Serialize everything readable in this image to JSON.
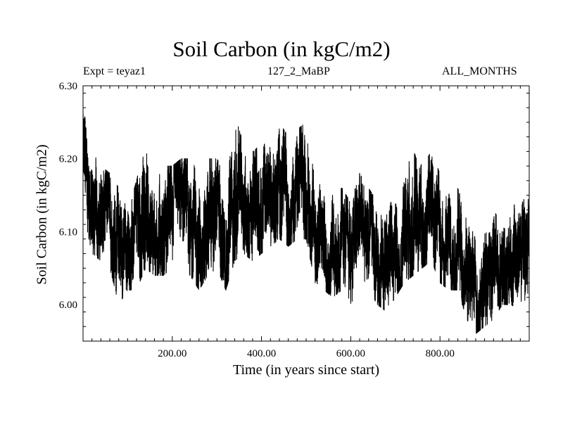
{
  "header": {
    "title": "Soil Carbon (in kgC/m2)",
    "expt": "Expt = teyaz1",
    "subtitle": "127_2_MaBP",
    "months": "ALL_MONTHS"
  },
  "colors": {
    "line": "#000000",
    "axis": "#000000",
    "background": "#ffffff"
  },
  "chart_data": {
    "type": "line",
    "title": "Soil Carbon (in kgC/m2)",
    "xlabel": "Time (in years since start)",
    "ylabel": "Soil Carbon (in kgC/m2)",
    "xlim": [
      0,
      1000
    ],
    "ylim": [
      5.95,
      6.3
    ],
    "x_ticks": [
      200,
      400,
      600,
      800
    ],
    "x_tick_labels": [
      "200.00",
      "400.00",
      "600.00",
      "800.00"
    ],
    "y_ticks": [
      6.0,
      6.1,
      6.2,
      6.3
    ],
    "y_tick_labels": [
      "6.00",
      "6.10",
      "6.20",
      "6.30"
    ],
    "grid": false,
    "series": [
      {
        "name": "Soil Carbon",
        "note": "dense monthly noise around a slowly varying mean",
        "x": [
          0,
          20,
          40,
          60,
          80,
          100,
          120,
          140,
          160,
          180,
          200,
          220,
          240,
          260,
          280,
          300,
          320,
          340,
          360,
          380,
          400,
          420,
          440,
          460,
          480,
          500,
          520,
          540,
          560,
          580,
          600,
          620,
          640,
          660,
          680,
          700,
          720,
          740,
          760,
          780,
          800,
          820,
          840,
          860,
          880,
          900,
          920,
          940,
          960,
          980,
          1000
        ],
        "mean": [
          6.2,
          6.13,
          6.11,
          6.12,
          6.09,
          6.07,
          6.09,
          6.12,
          6.1,
          6.11,
          6.12,
          6.13,
          6.12,
          6.1,
          6.12,
          6.12,
          6.1,
          6.14,
          6.15,
          6.13,
          6.14,
          6.15,
          6.16,
          6.15,
          6.16,
          6.16,
          6.1,
          6.09,
          6.08,
          6.09,
          6.07,
          6.11,
          6.09,
          6.07,
          6.06,
          6.08,
          6.1,
          6.11,
          6.12,
          6.13,
          6.1,
          6.09,
          6.09,
          6.05,
          6.01,
          6.04,
          6.05,
          6.07,
          6.07,
          6.06,
          6.09
        ],
        "min": [
          6.13,
          6.07,
          6.06,
          6.05,
          6.0,
          6.02,
          6.02,
          6.05,
          6.04,
          6.04,
          6.05,
          6.05,
          6.04,
          6.02,
          6.04,
          6.05,
          6.02,
          6.06,
          6.07,
          6.06,
          6.07,
          6.08,
          6.09,
          6.08,
          6.09,
          6.09,
          6.03,
          6.02,
          6.01,
          6.02,
          5.99,
          6.04,
          6.02,
          6.0,
          5.99,
          6.01,
          6.03,
          6.04,
          6.05,
          6.06,
          6.03,
          6.02,
          6.02,
          5.98,
          5.96,
          5.97,
          5.98,
          6.0,
          6.0,
          5.99,
          6.02
        ],
        "max": [
          6.27,
          6.21,
          6.19,
          6.18,
          6.16,
          6.13,
          6.17,
          6.23,
          6.17,
          6.19,
          6.19,
          6.2,
          6.2,
          6.18,
          6.2,
          6.2,
          6.18,
          6.26,
          6.22,
          6.21,
          6.22,
          6.22,
          6.25,
          6.23,
          6.24,
          6.25,
          6.17,
          6.16,
          6.15,
          6.16,
          6.14,
          6.18,
          6.16,
          6.14,
          6.13,
          6.15,
          6.18,
          6.21,
          6.19,
          6.21,
          6.18,
          6.17,
          6.16,
          6.12,
          6.09,
          6.11,
          6.12,
          6.14,
          6.14,
          6.13,
          6.17
        ]
      }
    ]
  }
}
